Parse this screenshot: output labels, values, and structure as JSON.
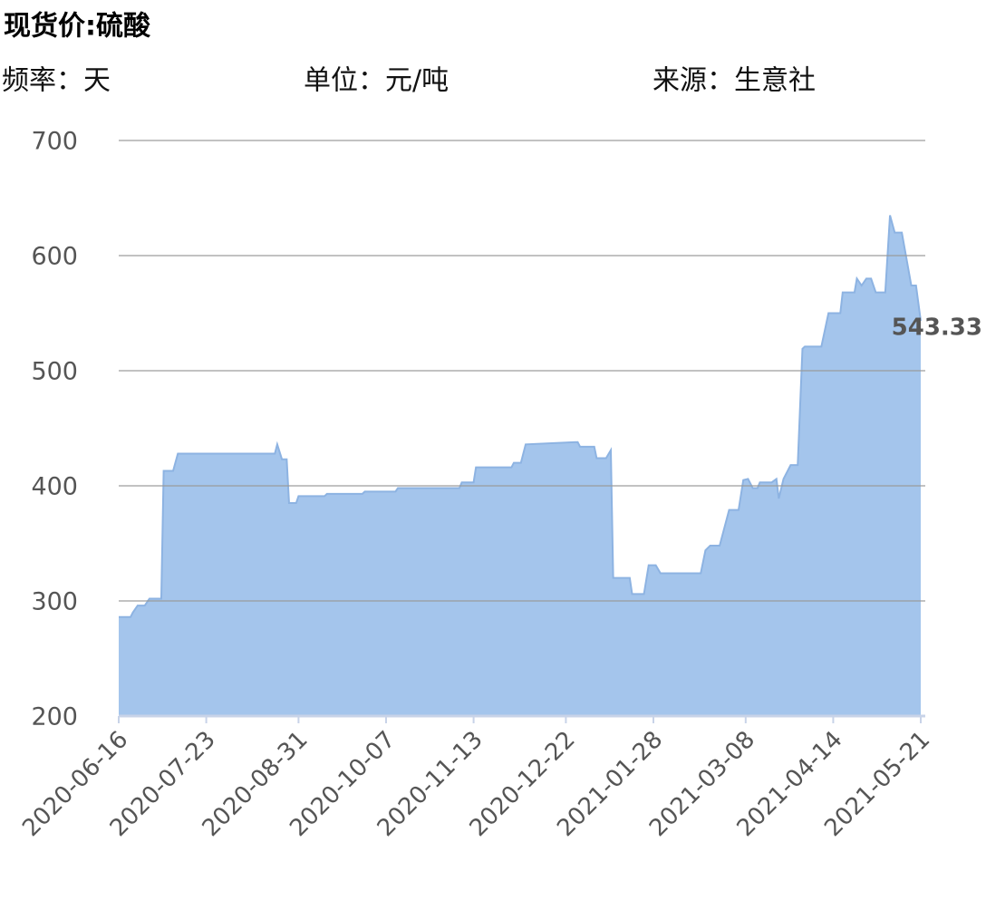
{
  "chart_data": {
    "type": "area",
    "title": "现货价:硫酸",
    "info": [
      "频率：天",
      "单位：元/吨",
      "来源：生意社"
    ],
    "x": [
      "2020-06-16",
      "2020-06-21",
      "2020-06-22",
      "2020-06-24",
      "2020-06-27",
      "2020-06-29",
      "2020-07-04",
      "2020-07-05",
      "2020-07-09",
      "2020-07-11",
      "2020-08-21",
      "2020-08-22",
      "2020-08-24",
      "2020-08-26",
      "2020-08-27",
      "2020-08-30",
      "2020-08-31",
      "2020-09-11",
      "2020-09-12",
      "2020-09-27",
      "2020-09-28",
      "2020-10-11",
      "2020-10-12",
      "2020-11-07",
      "2020-11-08",
      "2020-11-13",
      "2020-11-14",
      "2020-11-29",
      "2020-11-30",
      "2020-12-03",
      "2020-12-05",
      "2020-12-27",
      "2020-12-28",
      "2021-01-03",
      "2021-01-04",
      "2021-01-08",
      "2021-01-10",
      "2021-01-11",
      "2021-01-18",
      "2021-01-19",
      "2021-01-24",
      "2021-01-26",
      "2021-01-29",
      "2021-01-31",
      "2021-02-17",
      "2021-02-19",
      "2021-02-21",
      "2021-02-25",
      "2021-03-01",
      "2021-03-05",
      "2021-03-07",
      "2021-03-09",
      "2021-03-11",
      "2021-03-13",
      "2021-03-14",
      "2021-03-19",
      "2021-03-21",
      "2021-03-22",
      "2021-03-24",
      "2021-03-27",
      "2021-03-30",
      "2021-04-01",
      "2021-04-02",
      "2021-04-09",
      "2021-04-12",
      "2021-04-17",
      "2021-04-18",
      "2021-04-23",
      "2021-04-24",
      "2021-04-26",
      "2021-04-28",
      "2021-04-30",
      "2021-05-02",
      "2021-05-06",
      "2021-05-08",
      "2021-05-10",
      "2021-05-13",
      "2021-05-17",
      "2021-05-19",
      "2021-05-21"
    ],
    "values": [
      286,
      286,
      290,
      296,
      296,
      302,
      302,
      413,
      413,
      428,
      428,
      436,
      423,
      423,
      385,
      385,
      391,
      391,
      393,
      393,
      395,
      395,
      398,
      398,
      403,
      403,
      416,
      416,
      420,
      420,
      436,
      438,
      434,
      434,
      424,
      424,
      431,
      320,
      320,
      306,
      306,
      331,
      331,
      324,
      324,
      344,
      348,
      348,
      379,
      379,
      405,
      406,
      398,
      398,
      403,
      403,
      406,
      389,
      406,
      418,
      418,
      519,
      521,
      521,
      550,
      550,
      568,
      568,
      580,
      574,
      580,
      580,
      568,
      568,
      635,
      620,
      620,
      574,
      574,
      543.33
    ],
    "color": "#a4c5ec",
    "line_color": "#8db3e2",
    "xlim": [
      "2020-06-16",
      "2021-05-21"
    ],
    "xticks": [
      "2020-06-16",
      "2020-07-23",
      "2020-08-31",
      "2020-10-07",
      "2020-11-13",
      "2020-12-22",
      "2021-01-28",
      "2021-03-08",
      "2021-04-14",
      "2021-05-21"
    ],
    "ylim": [
      200,
      700
    ],
    "yticks": [
      200,
      300,
      400,
      500,
      600,
      700
    ],
    "grid": true,
    "last_value_label": true
  }
}
